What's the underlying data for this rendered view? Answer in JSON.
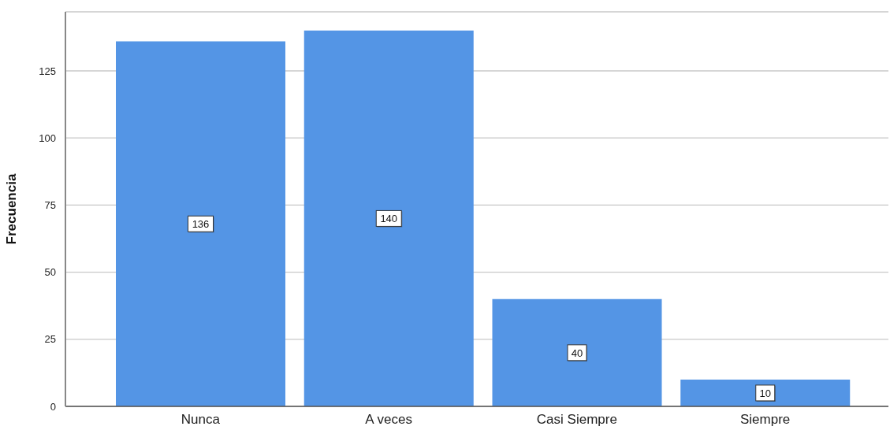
{
  "chart_data": {
    "type": "bar",
    "ylabel": "Frecuencia",
    "categories": [
      "Nunca",
      "A veces",
      "Casi Siempre",
      "Siempre"
    ],
    "values": [
      136,
      140,
      40,
      10
    ],
    "color": "#5495e5",
    "ylim": [
      0,
      147
    ],
    "yticks": [
      0,
      25,
      50,
      75,
      100,
      125
    ],
    "grid": "y",
    "data_labels": true
  }
}
